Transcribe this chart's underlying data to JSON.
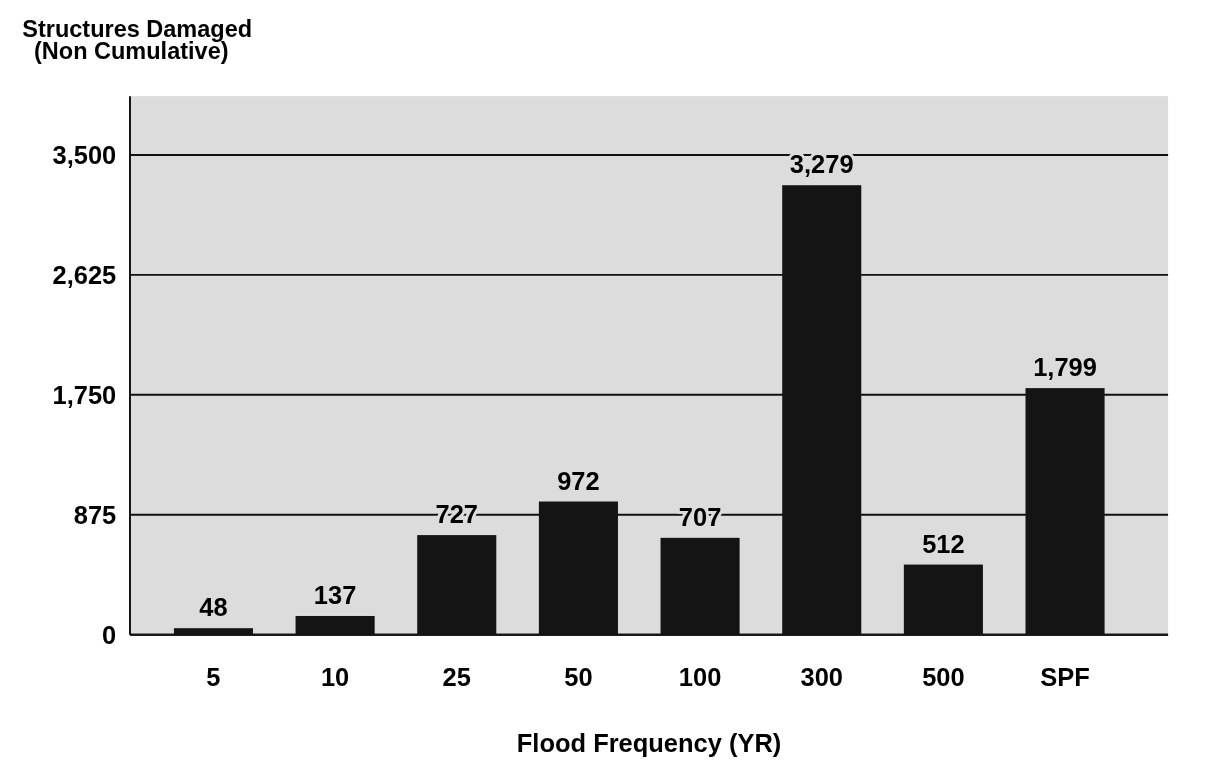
{
  "chart_data": {
    "type": "bar",
    "ylabel": "Structures Damaged\n(Non Cumulative)",
    "xlabel": "Flood Frequency (YR)",
    "categories": [
      "5",
      "10",
      "25",
      "50",
      "100",
      "300",
      "500",
      "SPF"
    ],
    "values": [
      48,
      137,
      727,
      972,
      707,
      3279,
      512,
      1799
    ],
    "value_labels": [
      "48",
      "137",
      "727",
      "972",
      "707",
      "3,279",
      "512",
      "1,799"
    ],
    "color": "#141414",
    "ylim": [
      0,
      3500
    ],
    "yticks": [
      0,
      {
        "value": 875,
        "label": "875"
      },
      {
        "value": 1750,
        "label": "1,750"
      },
      {
        "value": 2625,
        "label": "2,625"
      },
      {
        "value": 3500,
        "label": "3,500"
      }
    ],
    "grid": "y"
  }
}
